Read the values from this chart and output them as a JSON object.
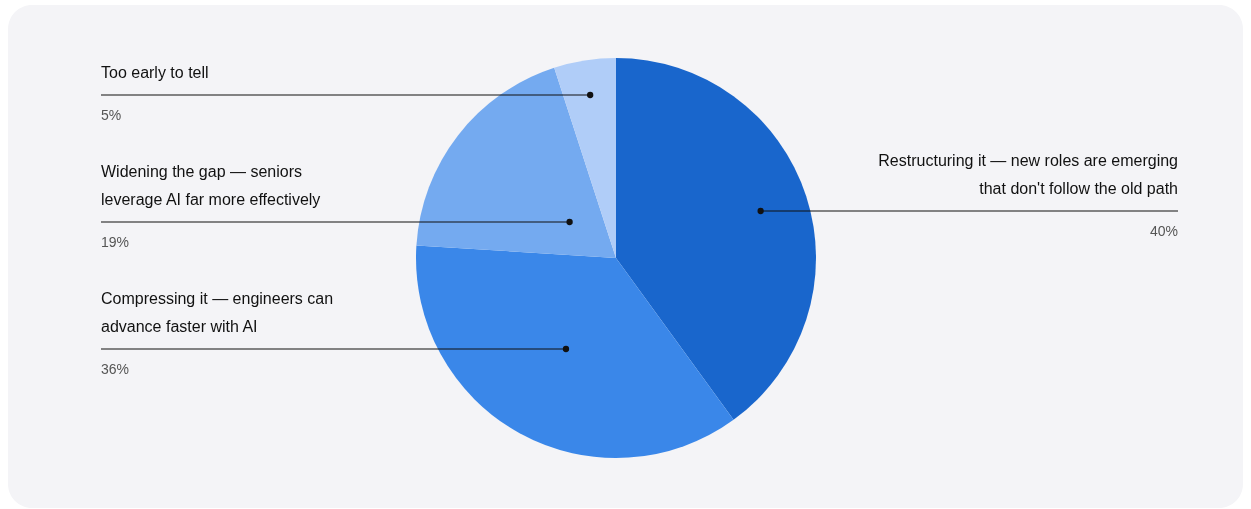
{
  "chart_data": {
    "type": "pie",
    "categories": [
      "Restructuring it — new roles are emerging that don't follow the old path",
      "Compressing it — engineers can advance faster with AI",
      "Widening the gap — seniors leverage AI far more effectively",
      "Too early to tell"
    ],
    "values": [
      40,
      36,
      19,
      5
    ],
    "value_labels": [
      "40%",
      "36%",
      "19%",
      "5%"
    ],
    "colors": [
      "#1966cc",
      "#3a87e9",
      "#74aaf0",
      "#b0cdf8"
    ]
  }
}
